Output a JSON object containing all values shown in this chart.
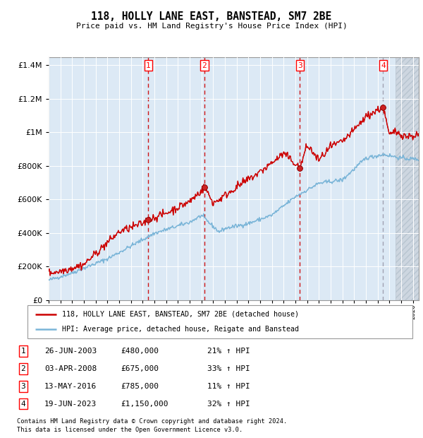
{
  "title": "118, HOLLY LANE EAST, BANSTEAD, SM7 2BE",
  "subtitle": "Price paid vs. HM Land Registry's House Price Index (HPI)",
  "legend_line1": "118, HOLLY LANE EAST, BANSTEAD, SM7 2BE (detached house)",
  "legend_line2": "HPI: Average price, detached house, Reigate and Banstead",
  "footer1": "Contains HM Land Registry data © Crown copyright and database right 2024.",
  "footer2": "This data is licensed under the Open Government Licence v3.0.",
  "transactions": [
    {
      "num": 1,
      "date": "26-JUN-2003",
      "price": 480000,
      "year": 2003.49,
      "pct": "21%",
      "dir": "↑"
    },
    {
      "num": 2,
      "date": "03-APR-2008",
      "price": 675000,
      "year": 2008.26,
      "pct": "33%",
      "dir": "↑"
    },
    {
      "num": 3,
      "date": "13-MAY-2016",
      "price": 785000,
      "year": 2016.37,
      "pct": "11%",
      "dir": "↑"
    },
    {
      "num": 4,
      "date": "19-JUN-2023",
      "price": 1150000,
      "year": 2023.47,
      "pct": "32%",
      "dir": "↑"
    }
  ],
  "table_rows": [
    [
      "1",
      "26-JUN-2003",
      "£480,000",
      "21% ↑ HPI"
    ],
    [
      "2",
      "03-APR-2008",
      "£675,000",
      "33% ↑ HPI"
    ],
    [
      "3",
      "13-MAY-2016",
      "£785,000",
      "11% ↑ HPI"
    ],
    [
      "4",
      "19-JUN-2023",
      "£1,150,000",
      "32% ↑ HPI"
    ]
  ],
  "ylim": [
    0,
    1450000
  ],
  "xlim_start": 1995,
  "xlim_end": 2026.5,
  "hpi_color": "#7ab5d8",
  "price_color": "#cc0000",
  "bg_color": "#dce9f5",
  "hatch_color": "#c0cad8",
  "grid_color": "#ffffff",
  "vline_color_red": "#cc0000",
  "vline_color_gray": "#9999aa",
  "marker_color": "#aa0000",
  "yticks": [
    0,
    200000,
    400000,
    600000,
    800000,
    1000000,
    1200000,
    1400000
  ]
}
